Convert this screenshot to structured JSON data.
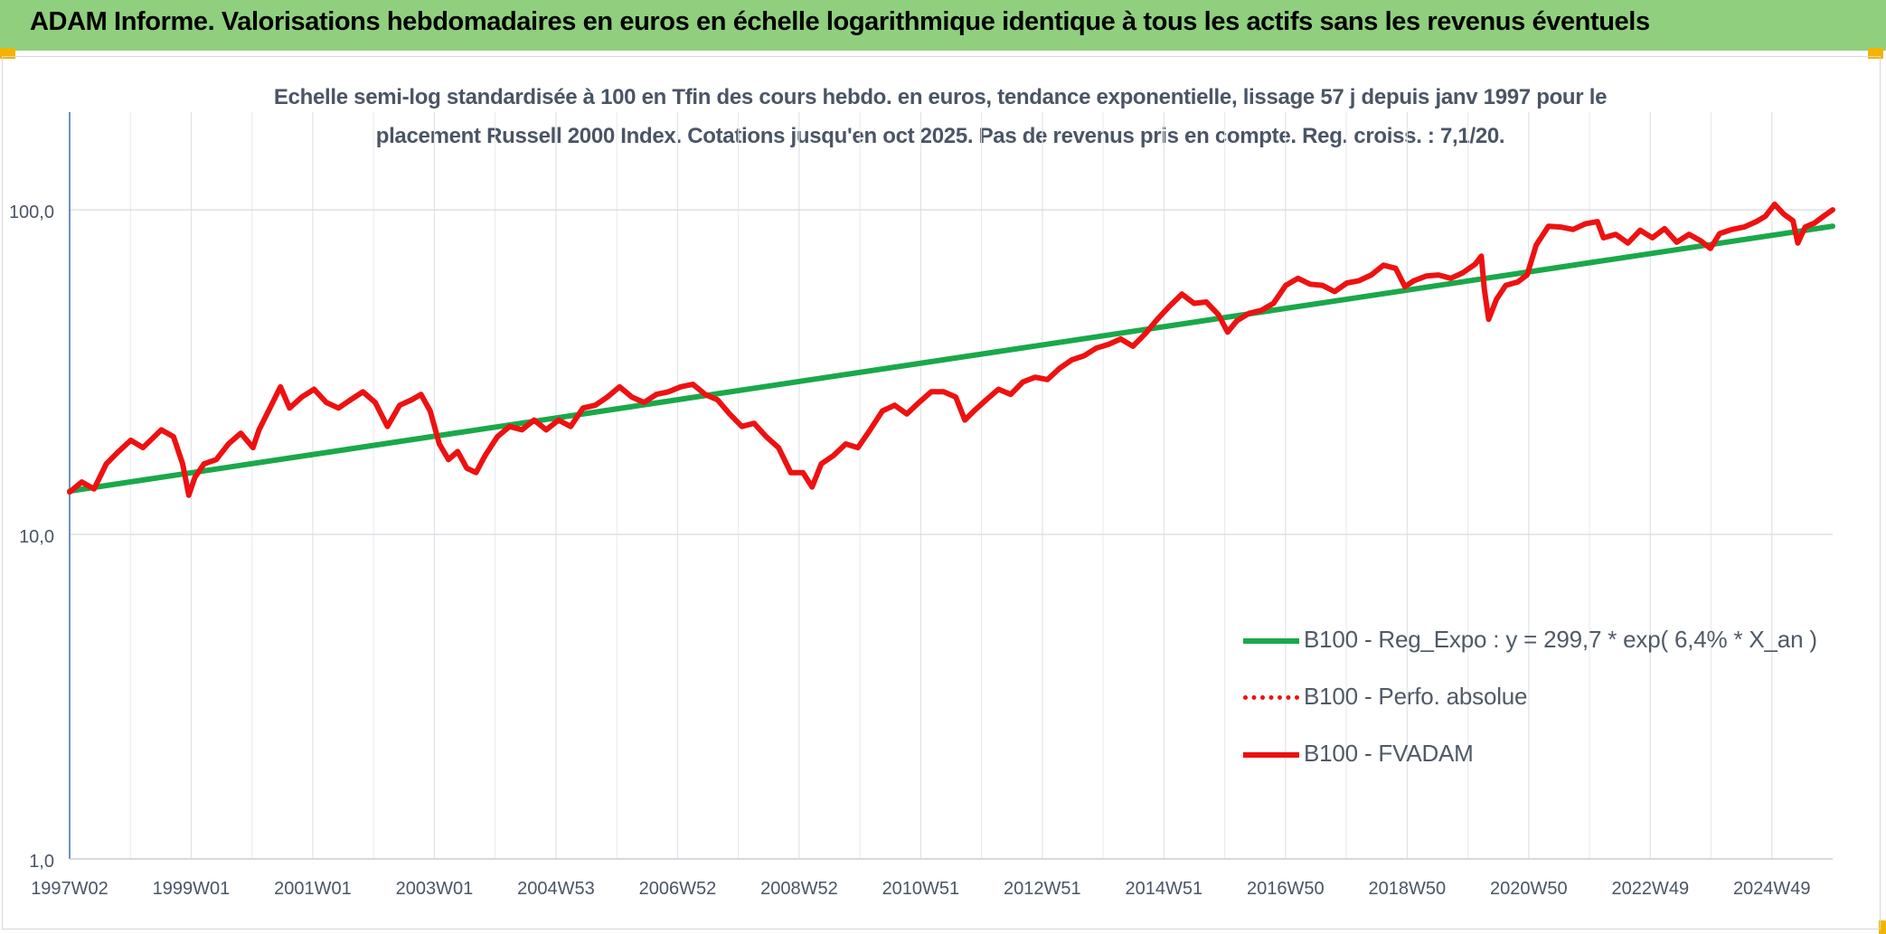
{
  "header": {
    "title": "ADAM Informe. Valorisations hebdomadaires en euros en échelle logarithmique identique à tous les actifs sans les revenus éventuels"
  },
  "chart_data": {
    "type": "line",
    "title_line1": "Echelle semi-log standardisée à 100 en Tfin des cours hebdo. en euros, tendance exponentielle, lissage 57 j depuis janv 1997 pour le",
    "title_line2": "placement Russell 2000 Index. Cotations jusqu'en oct 2025. Pas de revenus pris en compte. Reg. croiss. : 7,1/20.",
    "y_scale": "log",
    "ylim": [
      1,
      200
    ],
    "y_ticks": [
      {
        "value": 1,
        "label": "1,0"
      },
      {
        "value": 10,
        "label": "10,0"
      },
      {
        "value": 100,
        "label": "100,0"
      }
    ],
    "xlim": [
      1997.0,
      2025.85
    ],
    "x_tick_labels": [
      "1997W02",
      "1999W01",
      "2001W01",
      "2003W01",
      "2004W53",
      "2006W52",
      "2008W52",
      "2010W51",
      "2012W51",
      "2014W51",
      "2016W50",
      "2018W50",
      "2020W50",
      "2022W49",
      "2024W49"
    ],
    "grid": true,
    "legend_position": "bottom-right",
    "series": [
      {
        "name": "B100 - Reg_Expo : y = 299,7 * exp( 6,4% *  X_an )",
        "color": "#1aa84a",
        "style": "solid-thick",
        "points": [
          [
            1997.0,
            13.6
          ],
          [
            2025.85,
            89.0
          ]
        ]
      },
      {
        "name": "B100 - Perfo. absolue",
        "color": "#ee1111",
        "style": "dotted",
        "points": []
      },
      {
        "name": "B100 - FVADAM",
        "color": "#ee1111",
        "style": "solid-thick",
        "points": [
          [
            1997.0,
            13.5
          ],
          [
            1997.2,
            14.5
          ],
          [
            1997.4,
            13.8
          ],
          [
            1997.6,
            16.5
          ],
          [
            1997.8,
            18.0
          ],
          [
            1998.0,
            19.5
          ],
          [
            1998.2,
            18.5
          ],
          [
            1998.5,
            21.0
          ],
          [
            1998.7,
            20.0
          ],
          [
            1998.85,
            16.5
          ],
          [
            1998.95,
            13.2
          ],
          [
            1999.05,
            15.0
          ],
          [
            1999.2,
            16.5
          ],
          [
            1999.4,
            17.0
          ],
          [
            1999.6,
            19.0
          ],
          [
            1999.8,
            20.5
          ],
          [
            2000.0,
            18.5
          ],
          [
            2000.1,
            21.0
          ],
          [
            2000.3,
            25.0
          ],
          [
            2000.45,
            28.5
          ],
          [
            2000.6,
            24.5
          ],
          [
            2000.8,
            26.5
          ],
          [
            2001.0,
            28.0
          ],
          [
            2001.2,
            25.5
          ],
          [
            2001.4,
            24.5
          ],
          [
            2001.6,
            26.0
          ],
          [
            2001.8,
            27.5
          ],
          [
            2002.0,
            25.5
          ],
          [
            2002.2,
            21.5
          ],
          [
            2002.4,
            25.0
          ],
          [
            2002.6,
            26.0
          ],
          [
            2002.75,
            27.0
          ],
          [
            2002.9,
            24.0
          ],
          [
            2003.05,
            19.0
          ],
          [
            2003.2,
            17.0
          ],
          [
            2003.35,
            18.0
          ],
          [
            2003.5,
            16.0
          ],
          [
            2003.65,
            15.5
          ],
          [
            2003.8,
            17.5
          ],
          [
            2004.0,
            20.0
          ],
          [
            2004.2,
            21.5
          ],
          [
            2004.4,
            21.0
          ],
          [
            2004.6,
            22.5
          ],
          [
            2004.8,
            21.0
          ],
          [
            2005.0,
            22.5
          ],
          [
            2005.2,
            21.5
          ],
          [
            2005.4,
            24.5
          ],
          [
            2005.6,
            25.0
          ],
          [
            2005.8,
            26.5
          ],
          [
            2006.0,
            28.5
          ],
          [
            2006.2,
            26.5
          ],
          [
            2006.4,
            25.5
          ],
          [
            2006.6,
            27.0
          ],
          [
            2006.8,
            27.5
          ],
          [
            2007.0,
            28.5
          ],
          [
            2007.2,
            29.0
          ],
          [
            2007.4,
            27.0
          ],
          [
            2007.6,
            26.0
          ],
          [
            2007.8,
            23.5
          ],
          [
            2008.0,
            21.5
          ],
          [
            2008.2,
            22.0
          ],
          [
            2008.4,
            20.0
          ],
          [
            2008.6,
            18.5
          ],
          [
            2008.8,
            15.5
          ],
          [
            2009.0,
            15.5
          ],
          [
            2009.15,
            14.0
          ],
          [
            2009.3,
            16.5
          ],
          [
            2009.5,
            17.5
          ],
          [
            2009.7,
            19.0
          ],
          [
            2009.9,
            18.5
          ],
          [
            2010.1,
            21.0
          ],
          [
            2010.3,
            24.0
          ],
          [
            2010.5,
            25.0
          ],
          [
            2010.7,
            23.5
          ],
          [
            2010.9,
            25.5
          ],
          [
            2011.1,
            27.5
          ],
          [
            2011.3,
            27.5
          ],
          [
            2011.5,
            26.5
          ],
          [
            2011.65,
            22.5
          ],
          [
            2011.8,
            24.0
          ],
          [
            2012.0,
            26.0
          ],
          [
            2012.2,
            28.0
          ],
          [
            2012.4,
            27.0
          ],
          [
            2012.6,
            29.5
          ],
          [
            2012.8,
            30.5
          ],
          [
            2013.0,
            30.0
          ],
          [
            2013.2,
            32.5
          ],
          [
            2013.4,
            34.5
          ],
          [
            2013.6,
            35.5
          ],
          [
            2013.8,
            37.5
          ],
          [
            2014.0,
            38.5
          ],
          [
            2014.2,
            40.0
          ],
          [
            2014.4,
            38.0
          ],
          [
            2014.6,
            41.5
          ],
          [
            2014.8,
            46.0
          ],
          [
            2015.0,
            50.5
          ],
          [
            2015.2,
            55.0
          ],
          [
            2015.4,
            51.5
          ],
          [
            2015.6,
            52.0
          ],
          [
            2015.8,
            47.5
          ],
          [
            2015.95,
            42.0
          ],
          [
            2016.1,
            45.5
          ],
          [
            2016.3,
            48.0
          ],
          [
            2016.5,
            49.0
          ],
          [
            2016.7,
            51.5
          ],
          [
            2016.9,
            58.5
          ],
          [
            2017.1,
            61.5
          ],
          [
            2017.3,
            59.0
          ],
          [
            2017.5,
            58.5
          ],
          [
            2017.7,
            56.0
          ],
          [
            2017.9,
            59.5
          ],
          [
            2018.1,
            60.5
          ],
          [
            2018.3,
            63.0
          ],
          [
            2018.5,
            67.5
          ],
          [
            2018.7,
            66.0
          ],
          [
            2018.85,
            58.0
          ],
          [
            2019.0,
            60.5
          ],
          [
            2019.2,
            62.5
          ],
          [
            2019.4,
            63.0
          ],
          [
            2019.6,
            61.5
          ],
          [
            2019.8,
            64.0
          ],
          [
            2020.0,
            68.0
          ],
          [
            2020.1,
            72.0
          ],
          [
            2020.15,
            57.0
          ],
          [
            2020.22,
            46.0
          ],
          [
            2020.35,
            53.0
          ],
          [
            2020.5,
            58.5
          ],
          [
            2020.7,
            60.0
          ],
          [
            2020.85,
            63.0
          ],
          [
            2021.0,
            78.0
          ],
          [
            2021.2,
            89.0
          ],
          [
            2021.4,
            88.5
          ],
          [
            2021.6,
            87.0
          ],
          [
            2021.8,
            90.5
          ],
          [
            2022.0,
            92.0
          ],
          [
            2022.1,
            82.0
          ],
          [
            2022.3,
            84.0
          ],
          [
            2022.5,
            79.0
          ],
          [
            2022.7,
            86.5
          ],
          [
            2022.9,
            82.0
          ],
          [
            2023.1,
            87.5
          ],
          [
            2023.3,
            79.5
          ],
          [
            2023.5,
            84.0
          ],
          [
            2023.7,
            80.0
          ],
          [
            2023.85,
            76.0
          ],
          [
            2024.0,
            84.5
          ],
          [
            2024.2,
            87.0
          ],
          [
            2024.4,
            88.5
          ],
          [
            2024.6,
            92.0
          ],
          [
            2024.75,
            95.5
          ],
          [
            2024.9,
            104.0
          ],
          [
            2025.05,
            97.0
          ],
          [
            2025.2,
            92.5
          ],
          [
            2025.28,
            79.0
          ],
          [
            2025.4,
            88.5
          ],
          [
            2025.55,
            91.0
          ],
          [
            2025.7,
            95.5
          ],
          [
            2025.85,
            100.0
          ]
        ]
      }
    ]
  }
}
